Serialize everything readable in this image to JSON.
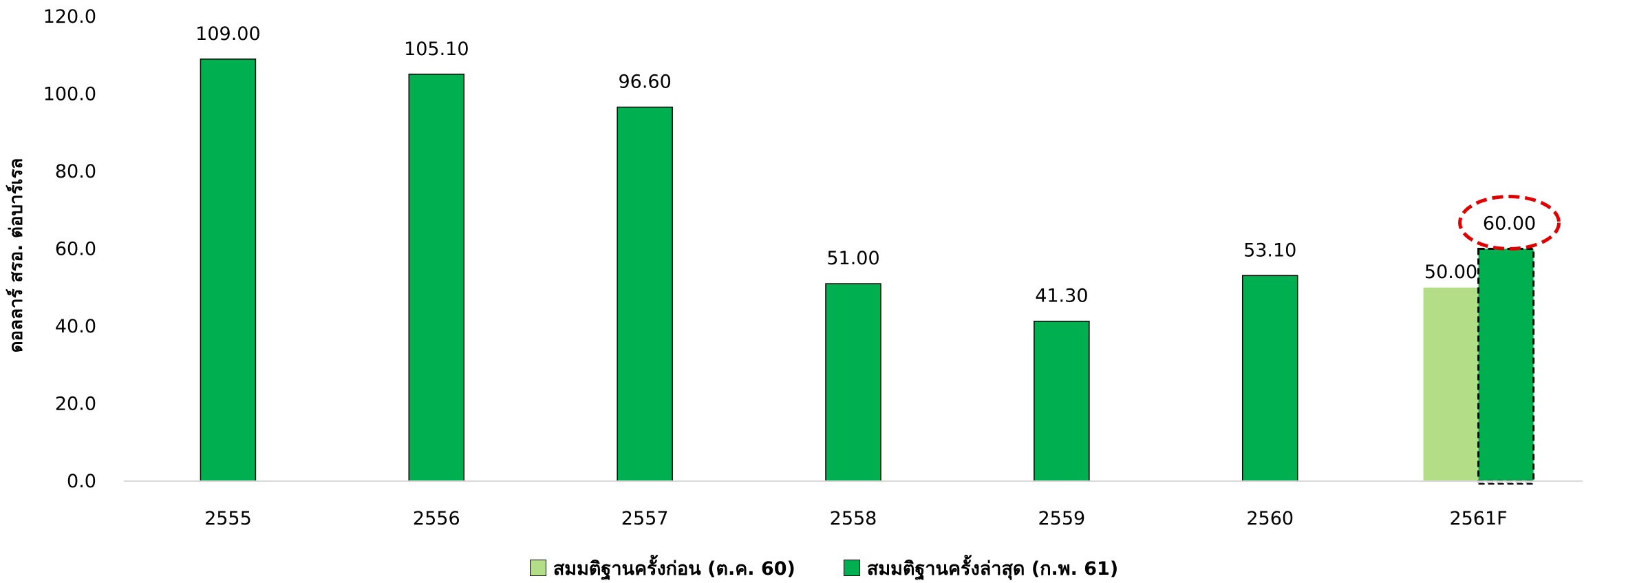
{
  "chart_data": {
    "type": "bar",
    "categories": [
      "2555",
      "2556",
      "2557",
      "2558",
      "2559",
      "2560",
      "2561F"
    ],
    "series": [
      {
        "name": "สมมติฐานครั้งก่อน (ต.ค. 60)",
        "color": "#b3de87",
        "values": [
          null,
          null,
          null,
          null,
          null,
          null,
          50.0
        ],
        "labels": [
          "",
          "",
          "",
          "",
          "",
          "",
          "50.00"
        ]
      },
      {
        "name": "สมมติฐานครั้งล่าสุด (ก.พ. 61)",
        "color": "#00b050",
        "values": [
          109.0,
          105.1,
          96.6,
          51.0,
          41.3,
          53.1,
          60.0
        ],
        "labels": [
          "109.00",
          "105.10",
          "96.60",
          "51.00",
          "41.30",
          "53.10",
          "60.00"
        ]
      }
    ],
    "highlighted": {
      "category": "2561F",
      "series": 1,
      "style": "dashed-outline",
      "label_circle_color": "#e00000"
    },
    "ylabel": "ดอลลาร์ สรอ. ต่อบาร์เรล",
    "ylim": [
      0,
      120
    ],
    "yticks": [
      "0.0",
      "20.0",
      "40.0",
      "60.0",
      "80.0",
      "100.0",
      "120.0"
    ],
    "grid": false,
    "legend_position": "bottom"
  },
  "legend": {
    "items": [
      {
        "label": "สมมติฐานครั้งก่อน (ต.ค. 60)",
        "color": "#b3de87"
      },
      {
        "label": "สมมติฐานครั้งล่าสุด (ก.พ. 61)",
        "color": "#00b050"
      }
    ]
  }
}
